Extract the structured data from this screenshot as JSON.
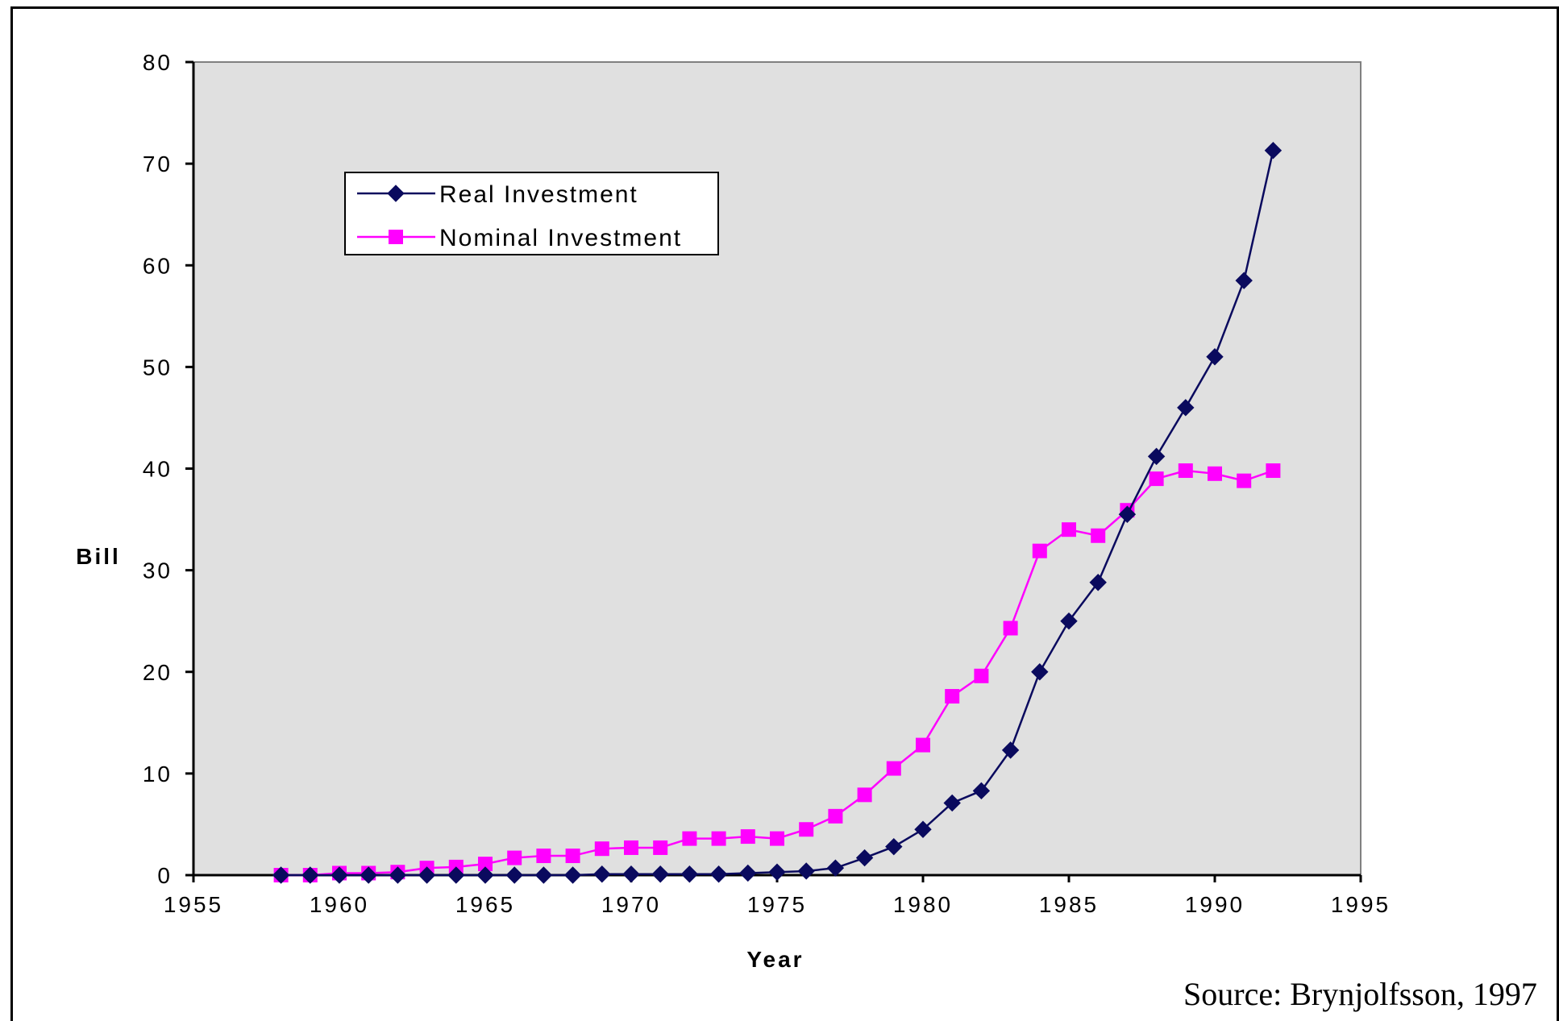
{
  "source_text": "Source: Brynjolfsson, 1997",
  "colors": {
    "plot_bg": "#e0e0e0",
    "real": "#0a0a5e",
    "nominal": "#ff00ff"
  },
  "chart_data": {
    "type": "line",
    "title": "",
    "xlabel": "Year",
    "ylabel": "Bill",
    "xlim": [
      1955,
      1995
    ],
    "ylim": [
      0,
      80
    ],
    "x_ticks": [
      "1955",
      "1960",
      "1965",
      "1970",
      "1975",
      "1980",
      "1985",
      "1990",
      "1995"
    ],
    "y_ticks": [
      "0",
      "10",
      "20",
      "30",
      "40",
      "50",
      "60",
      "70",
      "80"
    ],
    "grid": false,
    "legend": "top-left",
    "x": [
      1958,
      1959,
      1960,
      1961,
      1962,
      1963,
      1964,
      1965,
      1966,
      1967,
      1968,
      1969,
      1970,
      1971,
      1972,
      1973,
      1974,
      1975,
      1976,
      1977,
      1978,
      1979,
      1980,
      1981,
      1982,
      1983,
      1984,
      1985,
      1986,
      1987,
      1988,
      1989,
      1990,
      1991,
      1992
    ],
    "series": [
      {
        "name": "Real Investment",
        "marker": "diamond",
        "values": [
          0,
          0,
          0,
          0,
          0,
          0,
          0,
          0,
          0,
          0,
          0,
          0.1,
          0.1,
          0.1,
          0.1,
          0.1,
          0.2,
          0.3,
          0.4,
          0.7,
          1.7,
          2.8,
          4.5,
          7.1,
          8.3,
          12.3,
          20,
          25,
          28.8,
          35.5,
          41.2,
          46,
          51,
          58.5,
          71.3
        ]
      },
      {
        "name": "Nominal Investment",
        "marker": "square",
        "values": [
          0,
          0,
          0.2,
          0.2,
          0.3,
          0.7,
          0.8,
          1.1,
          1.7,
          1.9,
          1.9,
          2.6,
          2.7,
          2.7,
          3.6,
          3.6,
          3.8,
          3.6,
          4.5,
          5.8,
          7.9,
          10.5,
          12.8,
          17.6,
          19.6,
          24.3,
          31.9,
          34,
          33.4,
          35.9,
          39,
          39.8,
          39.5,
          38.8,
          39.8
        ]
      }
    ]
  }
}
